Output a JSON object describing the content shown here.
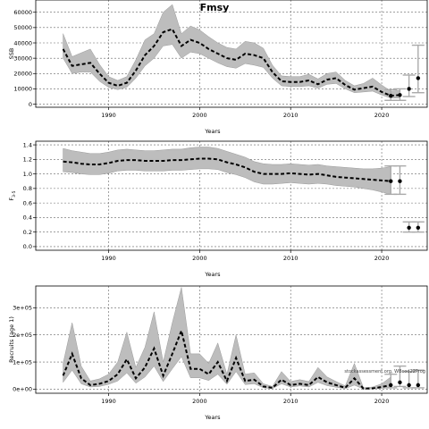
{
  "page": {
    "title": "Fmsy"
  },
  "chart_data": [
    {
      "type": "line",
      "ylabel": "SSB",
      "xlabel": "Years",
      "xlim": [
        1982,
        2025
      ],
      "ylim": [
        -2000,
        68000
      ],
      "xticks": [
        1990,
        2000,
        2010,
        2020
      ],
      "yticks": [
        0,
        10000,
        20000,
        30000,
        40000,
        50000,
        60000
      ],
      "ytick_labels": [
        "0",
        "10000",
        "20000",
        "30000",
        "40000",
        "50000",
        "60000"
      ],
      "grid": true,
      "years": [
        1985,
        1986,
        1987,
        1988,
        1989,
        1990,
        1991,
        1992,
        1993,
        1994,
        1995,
        1996,
        1997,
        1998,
        1999,
        2000,
        2001,
        2002,
        2003,
        2004,
        2005,
        2006,
        2007,
        2008,
        2009,
        2010,
        2011,
        2012,
        2013,
        2014,
        2015,
        2016,
        2017,
        2018,
        2019,
        2020,
        2021,
        2022
      ],
      "median": [
        36000,
        25000,
        26000,
        27000,
        20000,
        14000,
        12000,
        14000,
        22000,
        32000,
        38000,
        47000,
        49000,
        38000,
        42000,
        40000,
        36000,
        33000,
        30000,
        29000,
        33000,
        32000,
        30000,
        21000,
        15000,
        14500,
        14500,
        15500,
        13000,
        16000,
        17000,
        12500,
        9500,
        10500,
        11500,
        8000,
        5500,
        6000
      ],
      "lower": [
        30000,
        20000,
        21000,
        21000,
        15000,
        11000,
        9500,
        11000,
        17000,
        25000,
        30000,
        38000,
        39000,
        30000,
        34000,
        33000,
        30000,
        27000,
        24500,
        23500,
        26500,
        25500,
        24000,
        17000,
        12000,
        11500,
        11500,
        12000,
        10500,
        13000,
        13500,
        10000,
        7500,
        8000,
        8500,
        6000,
        4000,
        4000
      ],
      "upper": [
        46000,
        31000,
        33500,
        36000,
        26000,
        18000,
        15500,
        18000,
        29000,
        42000,
        46000,
        60000,
        65000,
        46000,
        51000,
        48500,
        44000,
        40000,
        37000,
        36000,
        41000,
        40000,
        36500,
        25500,
        18500,
        18000,
        18000,
        19500,
        16500,
        20000,
        21000,
        15500,
        12000,
        13500,
        17000,
        12500,
        8500,
        9000
      ],
      "projections": [
        {
          "year": 2021,
          "median": 5500,
          "lower": 2500,
          "upper": 9500
        },
        {
          "year": 2022,
          "median": 6000,
          "lower": 2500,
          "upper": 10000
        },
        {
          "year": 2023,
          "median": 10000,
          "lower": 5000,
          "upper": 19000
        },
        {
          "year": 2024,
          "median": 17000,
          "lower": 7500,
          "upper": 38500
        }
      ]
    },
    {
      "type": "line",
      "ylabel": "F",
      "ylabel_sub": "3-5",
      "xlabel": "Years",
      "xlim": [
        1982,
        2025
      ],
      "ylim": [
        -0.05,
        1.45
      ],
      "xticks": [
        1990,
        2000,
        2010,
        2020
      ],
      "yticks": [
        0.0,
        0.2,
        0.4,
        0.6,
        0.8,
        1.0,
        1.2,
        1.4
      ],
      "ytick_labels": [
        "0.0",
        "0.2",
        "0.4",
        "0.6",
        "0.8",
        "1.0",
        "1.2",
        "1.4"
      ],
      "grid": true,
      "years": [
        1985,
        1986,
        1987,
        1988,
        1989,
        1990,
        1991,
        1992,
        1993,
        1994,
        1995,
        1996,
        1997,
        1998,
        1999,
        2000,
        2001,
        2002,
        2003,
        2004,
        2005,
        2006,
        2007,
        2008,
        2009,
        2010,
        2011,
        2012,
        2013,
        2014,
        2015,
        2016,
        2017,
        2018,
        2019,
        2020,
        2021
      ],
      "median": [
        1.17,
        1.16,
        1.14,
        1.13,
        1.13,
        1.15,
        1.18,
        1.19,
        1.19,
        1.18,
        1.18,
        1.18,
        1.19,
        1.19,
        1.2,
        1.21,
        1.21,
        1.2,
        1.16,
        1.13,
        1.09,
        1.03,
        1.0,
        1.0,
        1.0,
        1.01,
        1.0,
        0.99,
        1.0,
        0.98,
        0.96,
        0.95,
        0.94,
        0.93,
        0.92,
        0.91,
        0.9
      ],
      "lower": [
        1.03,
        1.02,
        1.0,
        0.99,
        0.99,
        1.01,
        1.04,
        1.05,
        1.05,
        1.04,
        1.04,
        1.04,
        1.05,
        1.05,
        1.06,
        1.07,
        1.07,
        1.06,
        1.02,
        0.99,
        0.95,
        0.89,
        0.86,
        0.86,
        0.87,
        0.88,
        0.87,
        0.86,
        0.87,
        0.86,
        0.84,
        0.83,
        0.82,
        0.8,
        0.78,
        0.75,
        0.72
      ],
      "upper": [
        1.35,
        1.32,
        1.3,
        1.28,
        1.28,
        1.3,
        1.33,
        1.34,
        1.33,
        1.32,
        1.32,
        1.33,
        1.34,
        1.34,
        1.36,
        1.37,
        1.37,
        1.35,
        1.31,
        1.27,
        1.23,
        1.17,
        1.14,
        1.13,
        1.13,
        1.14,
        1.13,
        1.12,
        1.13,
        1.11,
        1.1,
        1.09,
        1.08,
        1.07,
        1.07,
        1.08,
        1.1
      ],
      "projections": [
        {
          "year": 2021,
          "median": 0.9,
          "lower": 0.72,
          "upper": 1.11
        },
        {
          "year": 2022,
          "median": 0.9,
          "lower": 0.72,
          "upper": 1.11
        },
        {
          "year": 2023,
          "median": 0.26,
          "lower": 0.2,
          "upper": 0.34
        },
        {
          "year": 2024,
          "median": 0.26,
          "lower": 0.2,
          "upper": 0.34
        }
      ]
    },
    {
      "type": "line",
      "ylabel": "Recruits (age 1)",
      "xlabel": "Years",
      "xlim": [
        1982,
        2025
      ],
      "ylim": [
        -15000,
        380000
      ],
      "xticks": [
        1990,
        2000,
        2010,
        2020
      ],
      "yticks": [
        0,
        100000,
        200000,
        300000
      ],
      "ytick_labels": [
        "0e+00",
        "1e+05",
        "2e+05",
        "3e+05"
      ],
      "grid": true,
      "note": "stockassessment.org, WBcod22Prog",
      "years": [
        1985,
        1986,
        1987,
        1988,
        1989,
        1990,
        1991,
        1992,
        1993,
        1994,
        1995,
        1996,
        1997,
        1998,
        1999,
        2000,
        2001,
        2002,
        2003,
        2004,
        2005,
        2006,
        2007,
        2008,
        2009,
        2010,
        2011,
        2012,
        2013,
        2014,
        2015,
        2016,
        2017,
        2018,
        2019,
        2020,
        2021
      ],
      "median": [
        50000,
        130000,
        40000,
        15000,
        20000,
        30000,
        55000,
        110000,
        40000,
        80000,
        150000,
        50000,
        130000,
        215000,
        75000,
        75000,
        55000,
        100000,
        30000,
        115000,
        30000,
        35000,
        10000,
        5000,
        35000,
        15000,
        20000,
        15000,
        45000,
        25000,
        15000,
        5000,
        40000,
        2000,
        3000,
        8000,
        15000
      ],
      "lower": [
        25000,
        70000,
        20000,
        8000,
        10000,
        18000,
        30000,
        60000,
        22000,
        45000,
        85000,
        28000,
        75000,
        120000,
        42000,
        42000,
        32000,
        55000,
        18000,
        65000,
        17000,
        20000,
        5000,
        2000,
        20000,
        8000,
        12000,
        8000,
        25000,
        13000,
        7000,
        2000,
        15000,
        500,
        1000,
        3000,
        5000
      ],
      "upper": [
        95000,
        245000,
        85000,
        30000,
        38000,
        55000,
        100000,
        210000,
        80000,
        155000,
        285000,
        100000,
        245000,
        375000,
        130000,
        130000,
        95000,
        170000,
        55000,
        200000,
        55000,
        60000,
        20000,
        10000,
        65000,
        28000,
        35000,
        28000,
        80000,
        45000,
        28000,
        12000,
        95000,
        5000,
        8000,
        20000,
        45000
      ],
      "projections": [
        {
          "year": 2021,
          "median": 15000,
          "lower": 5000,
          "upper": 55000
        },
        {
          "year": 2022,
          "median": 25000,
          "lower": 10000,
          "upper": 85000
        },
        {
          "year": 2023,
          "median": 15000,
          "lower": 5000,
          "upper": 65000
        },
        {
          "year": 2024,
          "median": 15000,
          "lower": 5000,
          "upper": 70000
        }
      ]
    }
  ]
}
